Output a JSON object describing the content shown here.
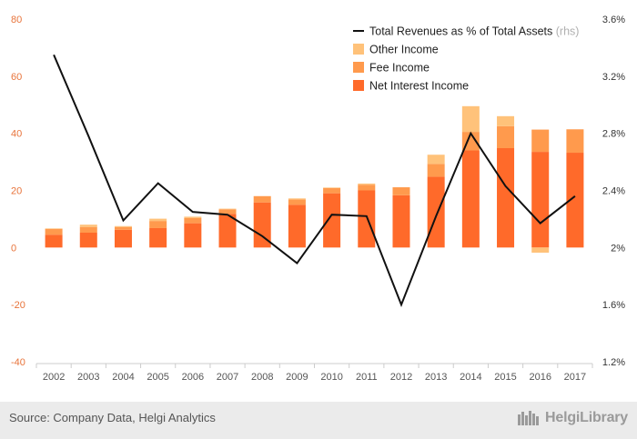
{
  "chart_data": {
    "type": "bar",
    "categories": [
      "2002",
      "2003",
      "2004",
      "2005",
      "2006",
      "2007",
      "2008",
      "2009",
      "2010",
      "2011",
      "2012",
      "2013",
      "2014",
      "2015",
      "2016",
      "2017"
    ],
    "series": [
      {
        "name": "Net Interest Income",
        "kind": "stacked-bar",
        "axis": "left",
        "color": "#ff6a2a",
        "values": [
          4.5,
          5.2,
          6.2,
          6.8,
          8.5,
          11.8,
          15.8,
          15.0,
          19.0,
          20.0,
          18.3,
          24.8,
          34.0,
          34.8,
          33.5,
          33.2
        ]
      },
      {
        "name": "Fee Income",
        "kind": "stacked-bar",
        "axis": "left",
        "color": "#ff9a4d",
        "values": [
          2.0,
          2.0,
          1.0,
          2.5,
          1.8,
          1.6,
          2.2,
          1.8,
          1.8,
          2.0,
          2.8,
          4.5,
          6.5,
          7.7,
          7.8,
          8.2
        ]
      },
      {
        "name": "Other Income",
        "kind": "stacked-bar",
        "axis": "left",
        "color": "#ffc27a",
        "values": [
          0.2,
          0.8,
          0.3,
          0.8,
          0.5,
          0.2,
          0.0,
          0.4,
          0.2,
          0.4,
          0.0,
          3.2,
          9.0,
          3.5,
          -1.8,
          0.0
        ]
      },
      {
        "name": "Total Revenues as % of Total Assets",
        "name_suffix": "(rhs)",
        "kind": "line",
        "axis": "right",
        "color": "#111111",
        "values": [
          3.35,
          2.78,
          2.19,
          2.45,
          2.25,
          2.23,
          2.08,
          1.89,
          2.23,
          2.22,
          1.6,
          2.22,
          2.8,
          2.43,
          2.17,
          2.36
        ]
      }
    ],
    "y_left": {
      "ylim": [
        -40,
        80
      ],
      "ticks": [
        -40,
        -20,
        0,
        20,
        40,
        60,
        80
      ],
      "tick_labels": [
        "-40",
        "-20",
        "0",
        "20",
        "40",
        "60",
        "80"
      ],
      "color": "#e8743b"
    },
    "y_right": {
      "ylim": [
        1.2,
        3.6
      ],
      "ticks": [
        1.2,
        1.6,
        2.0,
        2.4,
        2.8,
        3.2,
        3.6
      ],
      "tick_labels": [
        "1.2%",
        "1.6%",
        "2%",
        "2.4%",
        "2.8%",
        "3.2%",
        "3.6%"
      ]
    },
    "legend": {
      "position": "top-right",
      "order": [
        "Total Revenues as % of Total Assets",
        "Other Income",
        "Fee Income",
        "Net Interest Income"
      ]
    },
    "grid": false,
    "title": "",
    "xlabel": "",
    "ylabel": ""
  },
  "footer": {
    "source": "Source: Company Data, Helgi Analytics",
    "logo_text": "HelgiLibrary"
  }
}
